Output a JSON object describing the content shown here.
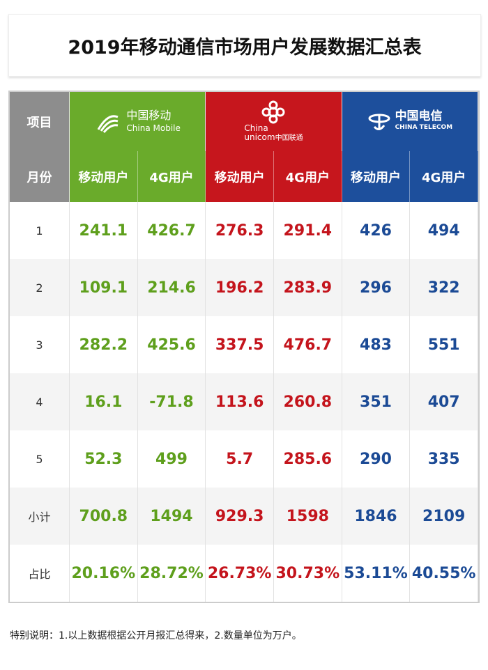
{
  "title": "2019年移动通信市场用户发展数据汇总表",
  "table": {
    "header": {
      "item": "项目",
      "brands": [
        {
          "name": "中国移动",
          "name_en": "China Mobile"
        },
        {
          "name_en_1": "China",
          "name_en_2": "unicom",
          "name": "中国联通"
        },
        {
          "name": "中国电信",
          "name_en": "CHINA TELECOM"
        }
      ]
    },
    "subheader": [
      "月份",
      "移动用户",
      "4G用户",
      "移动用户",
      "4G用户",
      "移动用户",
      "4G用户"
    ],
    "rows": [
      [
        "1",
        "241.1",
        "426.7",
        "276.3",
        "291.4",
        "426",
        "494"
      ],
      [
        "2",
        "109.1",
        "214.6",
        "196.2",
        "283.9",
        "296",
        "322"
      ],
      [
        "3",
        "282.2",
        "425.6",
        "337.5",
        "476.7",
        "483",
        "551"
      ],
      [
        "4",
        "16.1",
        "-71.8",
        "113.6",
        "260.8",
        "351",
        "407"
      ],
      [
        "5",
        "52.3",
        "499",
        "5.7",
        "285.6",
        "290",
        "335"
      ],
      [
        "小计",
        "700.8",
        "1494",
        "929.3",
        "1598",
        "1846",
        "2109"
      ],
      [
        "占比",
        "20.16%",
        "28.72%",
        "26.73%",
        "30.73%",
        "53.11%",
        "40.55%"
      ]
    ]
  },
  "footnote": "特别说明：1.以上数据根据公开月报汇总得来，2.数量单位为万户。"
}
